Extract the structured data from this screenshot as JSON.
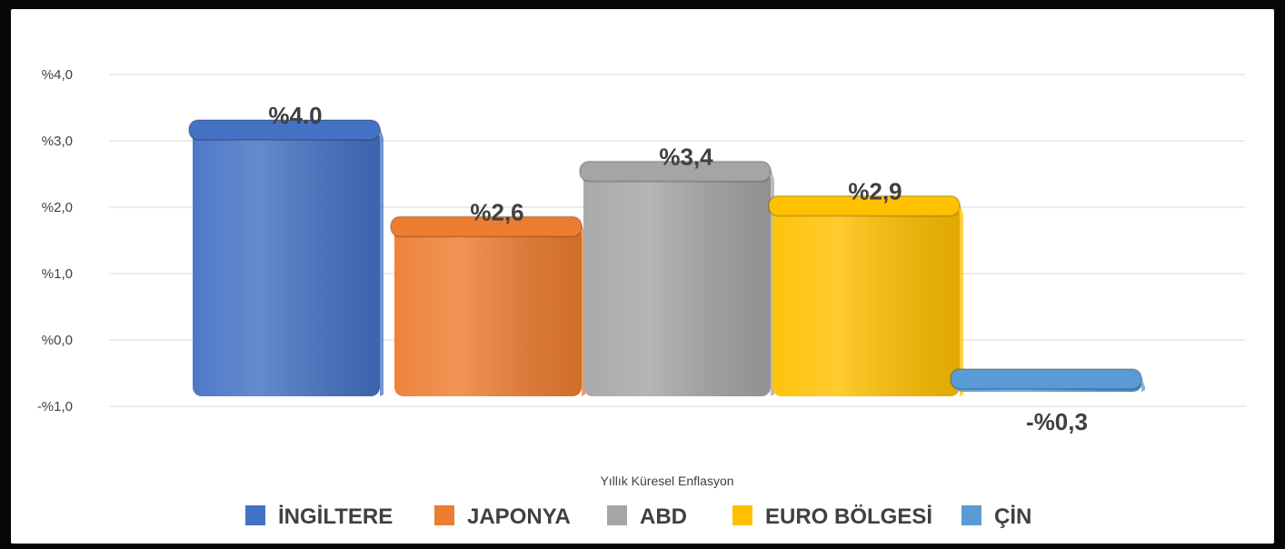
{
  "chart_data": {
    "type": "bar",
    "xlabel": "Yıllık Küresel Enflasyon",
    "ylabel": "",
    "ylim": [
      -1.0,
      4.0
    ],
    "yticks": [
      {
        "value": -1.0,
        "label": "-%1,0"
      },
      {
        "value": 0.0,
        "label": "%0,0"
      },
      {
        "value": 1.0,
        "label": "%1,0"
      },
      {
        "value": 2.0,
        "label": "%2,0"
      },
      {
        "value": 3.0,
        "label": "%3,0"
      },
      {
        "value": 4.0,
        "label": "%4,0"
      }
    ],
    "grid": true,
    "legend_position": "bottom",
    "categories": [
      "İNGİLTERE",
      "JAPONYA",
      "ABD",
      "EURO BÖLGESİ",
      "ÇİN"
    ],
    "values": [
      4.0,
      2.6,
      3.4,
      2.9,
      -0.3
    ],
    "data_labels": [
      "%4.0",
      "%2,6",
      "%3,4",
      "%2,9",
      "-%0,3"
    ],
    "colors": [
      "#4472c4",
      "#ed7d31",
      "#a5a5a5",
      "#ffc000",
      "#5b9bd5"
    ]
  }
}
